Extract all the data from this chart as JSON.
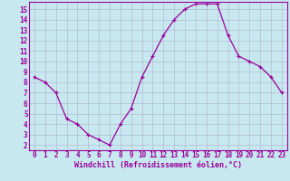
{
  "x": [
    0,
    1,
    2,
    3,
    4,
    5,
    6,
    7,
    8,
    9,
    10,
    11,
    12,
    13,
    14,
    15,
    16,
    17,
    18,
    19,
    20,
    21,
    22,
    23
  ],
  "y": [
    8.5,
    8.0,
    7.0,
    4.5,
    4.0,
    3.0,
    2.5,
    2.0,
    4.0,
    5.5,
    8.5,
    10.5,
    12.5,
    14.0,
    15.0,
    15.5,
    15.5,
    15.5,
    12.5,
    10.5,
    10.0,
    9.5,
    8.5,
    7.0
  ],
  "line_color": "#990099",
  "marker": "+",
  "marker_size": 3,
  "bg_color": "#c8e8f0",
  "grid_color": "#b0b0cc",
  "xlabel": "Windchill (Refroidissement éolien,°C)",
  "xlim": [
    -0.5,
    23.5
  ],
  "ylim": [
    1.5,
    15.7
  ],
  "xticks": [
    0,
    1,
    2,
    3,
    4,
    5,
    6,
    7,
    8,
    9,
    10,
    11,
    12,
    13,
    14,
    15,
    16,
    17,
    18,
    19,
    20,
    21,
    22,
    23
  ],
  "yticks": [
    2,
    3,
    4,
    5,
    6,
    7,
    8,
    9,
    10,
    11,
    12,
    13,
    14,
    15
  ],
  "tick_color": "#990099",
  "label_color": "#990099",
  "spine_color": "#990099",
  "tick_fontsize": 5.5,
  "xlabel_fontsize": 6.0
}
